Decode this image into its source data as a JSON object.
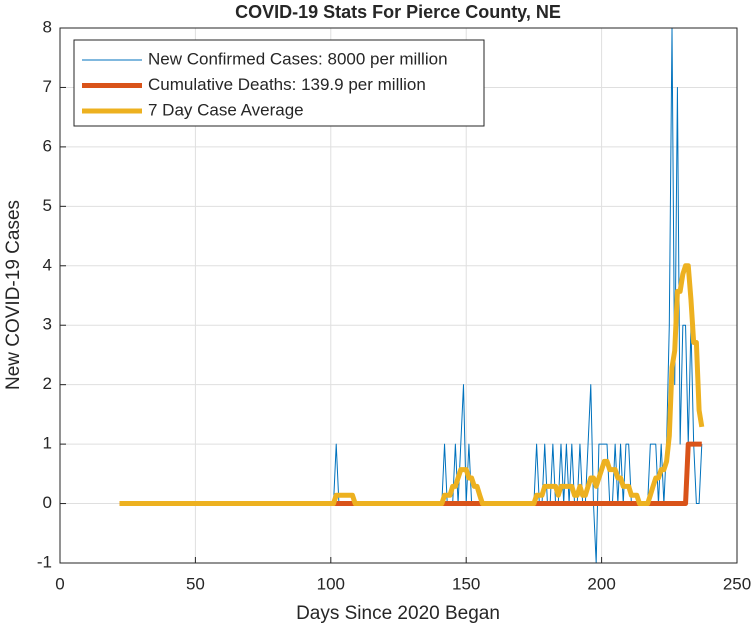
{
  "chart_data": {
    "type": "line",
    "title": "COVID-19 Stats For Pierce County, NE",
    "x_label": "Days Since 2020 Began",
    "y_label": "New COVID-19 Cases",
    "xlim": [
      0,
      250
    ],
    "xticks": [
      0,
      50,
      100,
      150,
      200,
      250
    ],
    "ylim": [
      -1,
      8
    ],
    "yticks": [
      -1,
      0,
      1,
      2,
      3,
      4,
      5,
      6,
      7,
      8
    ],
    "grid": true,
    "legend": "upper left",
    "x": [
      22,
      100,
      101,
      102,
      103,
      104,
      105,
      106,
      107,
      108,
      109,
      110,
      140,
      141,
      142,
      143,
      144,
      145,
      146,
      147,
      148,
      149,
      150,
      151,
      152,
      153,
      154,
      155,
      156,
      157,
      158,
      174,
      175,
      176,
      177,
      178,
      179,
      180,
      181,
      182,
      183,
      184,
      185,
      186,
      187,
      188,
      189,
      190,
      191,
      192,
      193,
      194,
      195,
      196,
      197,
      198,
      199,
      200,
      201,
      202,
      203,
      204,
      205,
      206,
      207,
      208,
      209,
      210,
      211,
      212,
      213,
      214,
      215,
      216,
      217,
      218,
      219,
      220,
      221,
      222,
      223,
      224,
      225,
      226,
      227,
      228,
      229,
      230,
      231,
      232,
      233,
      234,
      235,
      236,
      237
    ],
    "series": [
      {
        "name": "New Confirmed Cases: 8000 per million",
        "color": "#0072BD",
        "width": 1,
        "values": [
          0,
          0,
          0,
          1,
          0,
          0,
          0,
          0,
          0,
          0,
          0,
          0,
          0,
          0,
          1,
          0,
          0,
          0,
          1,
          0,
          1,
          2,
          0,
          1,
          0,
          0,
          0,
          0,
          0,
          0,
          0,
          0,
          0,
          1,
          0,
          0,
          1,
          0,
          0,
          1,
          0,
          0,
          1,
          0,
          1,
          0,
          1,
          0,
          0,
          1,
          0,
          0,
          1,
          2,
          0,
          -1,
          1,
          1,
          1,
          1,
          0,
          0,
          1,
          0,
          1,
          0,
          1,
          1,
          0,
          0,
          0,
          0,
          0,
          0,
          0,
          1,
          1,
          1,
          0,
          1,
          0,
          1,
          3,
          8,
          2,
          7,
          1,
          3,
          3,
          1,
          3,
          1,
          0,
          0,
          1
        ]
      },
      {
        "name": "Cumulative Deaths: 139.9 per million",
        "color": "#D95319",
        "width": 5,
        "values": [
          0,
          0,
          0,
          0,
          0,
          0,
          0,
          0,
          0,
          0,
          0,
          0,
          0,
          0,
          0,
          0,
          0,
          0,
          0,
          0,
          0,
          0,
          0,
          0,
          0,
          0,
          0,
          0,
          0,
          0,
          0,
          0,
          0,
          0,
          0,
          0,
          0,
          0,
          0,
          0,
          0,
          0,
          0,
          0,
          0,
          0,
          0,
          0,
          0,
          0,
          0,
          0,
          0,
          0,
          0,
          0,
          0,
          0,
          0,
          0,
          0,
          0,
          0,
          0,
          0,
          0,
          0,
          0,
          0,
          0,
          0,
          0,
          0,
          0,
          0,
          0,
          0,
          0,
          0,
          0,
          0,
          0,
          0,
          0,
          0,
          0,
          0,
          0,
          0,
          1,
          1,
          1,
          1,
          1,
          1
        ]
      },
      {
        "name": "7 Day Case Average",
        "color": "#EDB120",
        "width": 5,
        "values": [
          0,
          0,
          0,
          0.14,
          0.14,
          0.14,
          0.14,
          0.14,
          0.14,
          0.14,
          0,
          0,
          0,
          0,
          0.14,
          0.14,
          0.14,
          0.29,
          0.29,
          0.43,
          0.57,
          0.57,
          0.57,
          0.43,
          0.43,
          0.29,
          0.29,
          0.14,
          0,
          0,
          0,
          0,
          0,
          0.14,
          0.14,
          0.14,
          0.29,
          0.29,
          0.29,
          0.29,
          0.29,
          0.14,
          0.29,
          0.29,
          0.29,
          0.29,
          0.29,
          0.14,
          0.14,
          0.29,
          0.14,
          0.14,
          0.29,
          0.43,
          0.43,
          0.29,
          0.43,
          0.57,
          0.71,
          0.71,
          0.57,
          0.57,
          0.57,
          0.43,
          0.43,
          0.29,
          0.29,
          0.29,
          0.14,
          0.14,
          0.14,
          0,
          0,
          0,
          0,
          0.14,
          0.29,
          0.43,
          0.43,
          0.57,
          0.57,
          0.71,
          1.14,
          2.29,
          2.57,
          3.57,
          3.57,
          3.86,
          4,
          4,
          3.43,
          2.71,
          2.71,
          1.57,
          1.29
        ]
      }
    ]
  }
}
